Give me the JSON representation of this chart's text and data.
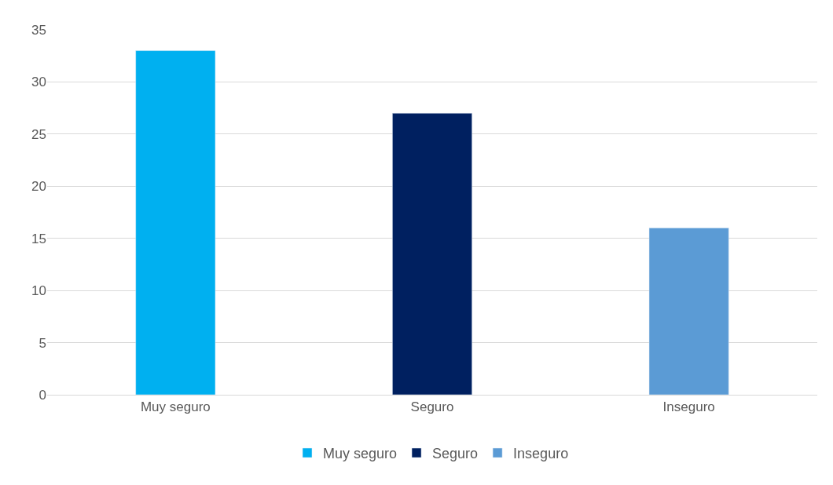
{
  "chart_data": {
    "type": "bar",
    "categories": [
      "Muy seguro",
      "Seguro",
      "Inseguro"
    ],
    "series": [
      {
        "name": "Muy seguro",
        "color": "#00b0f0",
        "values": [
          33,
          null,
          null
        ]
      },
      {
        "name": "Seguro",
        "color": "#002060",
        "values": [
          null,
          27,
          null
        ]
      },
      {
        "name": "Inseguro",
        "color": "#5b9bd5",
        "values": [
          null,
          null,
          16
        ]
      }
    ],
    "ylim": [
      0,
      35
    ],
    "yticks": [
      0,
      5,
      10,
      15,
      20,
      25,
      30,
      35
    ],
    "grid": "y",
    "legend": "bottom"
  }
}
